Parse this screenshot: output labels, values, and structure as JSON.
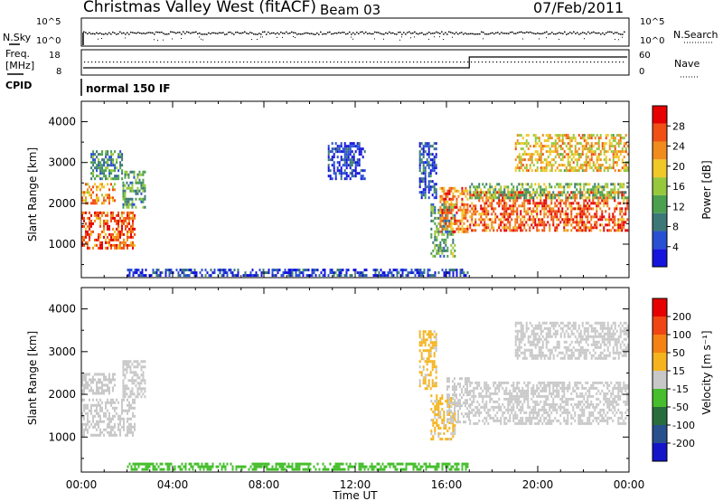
{
  "header": {
    "title": "Christmas Valley West (fitACF)",
    "beam": "Beam 03",
    "date": "07/Feb/2011"
  },
  "nsky_panel": {
    "left_label": "N.Sky",
    "right_label": "N.Search",
    "left_ticks": [
      "10^5",
      "10^0"
    ],
    "right_ticks": [
      "10^5",
      "10^0"
    ]
  },
  "freq_panel": {
    "left_label_line1": "Freq.",
    "left_label_line2": "[MHz]",
    "right_label": "Nave",
    "left_ticks": [
      "18",
      "8"
    ],
    "right_ticks": [
      "60",
      "0"
    ],
    "freq_step_time_hours": 17.0
  },
  "cpid_panel": {
    "label": "CPID",
    "text": "normal 150 IF"
  },
  "colors": {
    "power_scale": [
      "#1414dc",
      "#2850d2",
      "#3c7878",
      "#4ba050",
      "#96c83c",
      "#f0c828",
      "#f08c1e",
      "#f05014",
      "#e60000"
    ],
    "velocity_scale": [
      "#1414c8",
      "#28508c",
      "#286e3c",
      "#46be2d",
      "#c8c8c8",
      "#f5b41e",
      "#f58214",
      "#f04614",
      "#e60000"
    ],
    "ground_scatter": "#c8c8be"
  },
  "chart_data": [
    {
      "type": "heatmap",
      "name": "power",
      "ylabel": "Slant Range [km]",
      "xlim_hours": [
        0,
        24
      ],
      "ylim_km": [
        180,
        4500
      ],
      "y_ticks": [
        "1000",
        "2000",
        "3000",
        "4000"
      ],
      "colorbar": {
        "label": "Power [dB]",
        "tick_labels": [
          "28",
          "24",
          "20",
          "16",
          "12",
          "8",
          "4"
        ],
        "range": [
          0,
          32
        ]
      },
      "regions": [
        {
          "t0": 0.0,
          "t1": 2.4,
          "r0": 900,
          "r1": 1800,
          "value": 26
        },
        {
          "t0": 0.0,
          "t1": 1.5,
          "r0": 2000,
          "r1": 2500,
          "value": 22
        },
        {
          "t0": 0.4,
          "t1": 1.8,
          "r0": 2600,
          "r1": 3300,
          "value": 10
        },
        {
          "t0": 1.8,
          "t1": 2.8,
          "r0": 1900,
          "r1": 2800,
          "value": 12
        },
        {
          "t0": 10.8,
          "t1": 12.5,
          "r0": 2600,
          "r1": 3500,
          "value": 4
        },
        {
          "t0": 14.8,
          "t1": 15.6,
          "r0": 2100,
          "r1": 3500,
          "value": 6
        },
        {
          "t0": 15.3,
          "t1": 16.4,
          "r0": 700,
          "r1": 2000,
          "value": 12
        },
        {
          "t0": 15.7,
          "t1": 17.0,
          "r0": 1300,
          "r1": 2400,
          "value": 24
        },
        {
          "t0": 17.0,
          "t1": 24.0,
          "r0": 1300,
          "r1": 2300,
          "value": 26
        },
        {
          "t0": 17.0,
          "t1": 24.0,
          "r0": 2100,
          "r1": 2500,
          "value": 14
        },
        {
          "t0": 19.0,
          "t1": 24.0,
          "r0": 2800,
          "r1": 3700,
          "value": 20
        },
        {
          "t0": 2.0,
          "t1": 17.0,
          "r0": 180,
          "r1": 400,
          "value": 5
        }
      ]
    },
    {
      "type": "heatmap",
      "name": "velocity",
      "ylabel": "Slant Range [km]",
      "xlabel": "Time UT",
      "xlim_hours": [
        0,
        24
      ],
      "ylim_km": [
        180,
        4500
      ],
      "x_ticks": [
        "00:00",
        "04:00",
        "08:00",
        "12:00",
        "16:00",
        "20:00",
        "00:00"
      ],
      "y_ticks": [
        "1000",
        "2000",
        "3000",
        "4000"
      ],
      "colorbar": {
        "label": "Velocity [m s⁻¹]",
        "tick_labels": [
          "200",
          "100",
          "50",
          "15",
          "-15",
          "-50",
          "-100",
          "-200"
        ],
        "range": [
          -250,
          250
        ]
      },
      "regions": [
        {
          "t0": 0.0,
          "t1": 2.4,
          "r0": 1000,
          "r1": 1900,
          "value": 0
        },
        {
          "t0": 0.0,
          "t1": 1.5,
          "r0": 2000,
          "r1": 2500,
          "value": 0
        },
        {
          "t0": 1.8,
          "t1": 2.8,
          "r0": 1900,
          "r1": 2800,
          "value": 0
        },
        {
          "t0": 14.8,
          "t1": 15.6,
          "r0": 2100,
          "r1": 3500,
          "value": 40
        },
        {
          "t0": 15.3,
          "t1": 16.4,
          "r0": 900,
          "r1": 2000,
          "value": 40
        },
        {
          "t0": 16.0,
          "t1": 17.0,
          "r0": 1300,
          "r1": 2400,
          "value": 0
        },
        {
          "t0": 17.0,
          "t1": 24.0,
          "r0": 1300,
          "r1": 2300,
          "value": 0
        },
        {
          "t0": 19.0,
          "t1": 24.0,
          "r0": 2800,
          "r1": 3700,
          "value": 0
        },
        {
          "t0": 2.0,
          "t1": 17.0,
          "r0": 180,
          "r1": 400,
          "value": -60
        }
      ]
    }
  ]
}
